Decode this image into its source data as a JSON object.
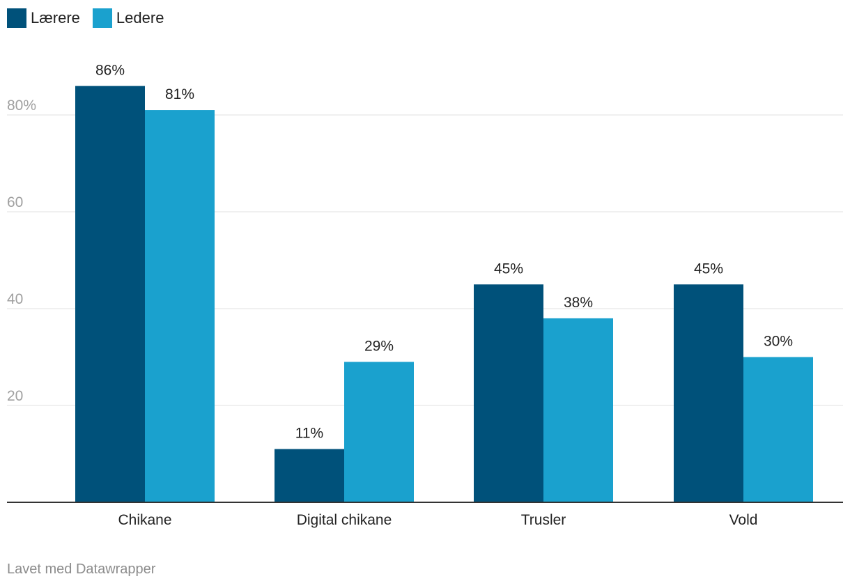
{
  "chart_data": {
    "type": "bar",
    "categories": [
      "Chikane",
      "Digital chikane",
      "Trusler",
      "Vold"
    ],
    "series": [
      {
        "name": "Lærere",
        "values": [
          86,
          11,
          45,
          45
        ],
        "labels": [
          "86%",
          "11%",
          "45%",
          "45%"
        ],
        "color": "#00517a"
      },
      {
        "name": "Ledere",
        "values": [
          81,
          29,
          38,
          30
        ],
        "labels": [
          "81%",
          "29%",
          "38%",
          "30%"
        ],
        "color": "#1aa1ce"
      }
    ],
    "y_ticks": [
      20,
      40,
      60,
      80
    ],
    "y_tick_labels": [
      "20",
      "40",
      "60",
      "80%"
    ],
    "ylim": [
      0,
      90
    ],
    "grid": true,
    "legend_position": "top-left"
  },
  "footer": {
    "credit": "Lavet med Datawrapper"
  },
  "colors": {
    "gridline": "#e0e0e0",
    "baseline": "#333333",
    "tick_label": "#a0a0a0"
  }
}
